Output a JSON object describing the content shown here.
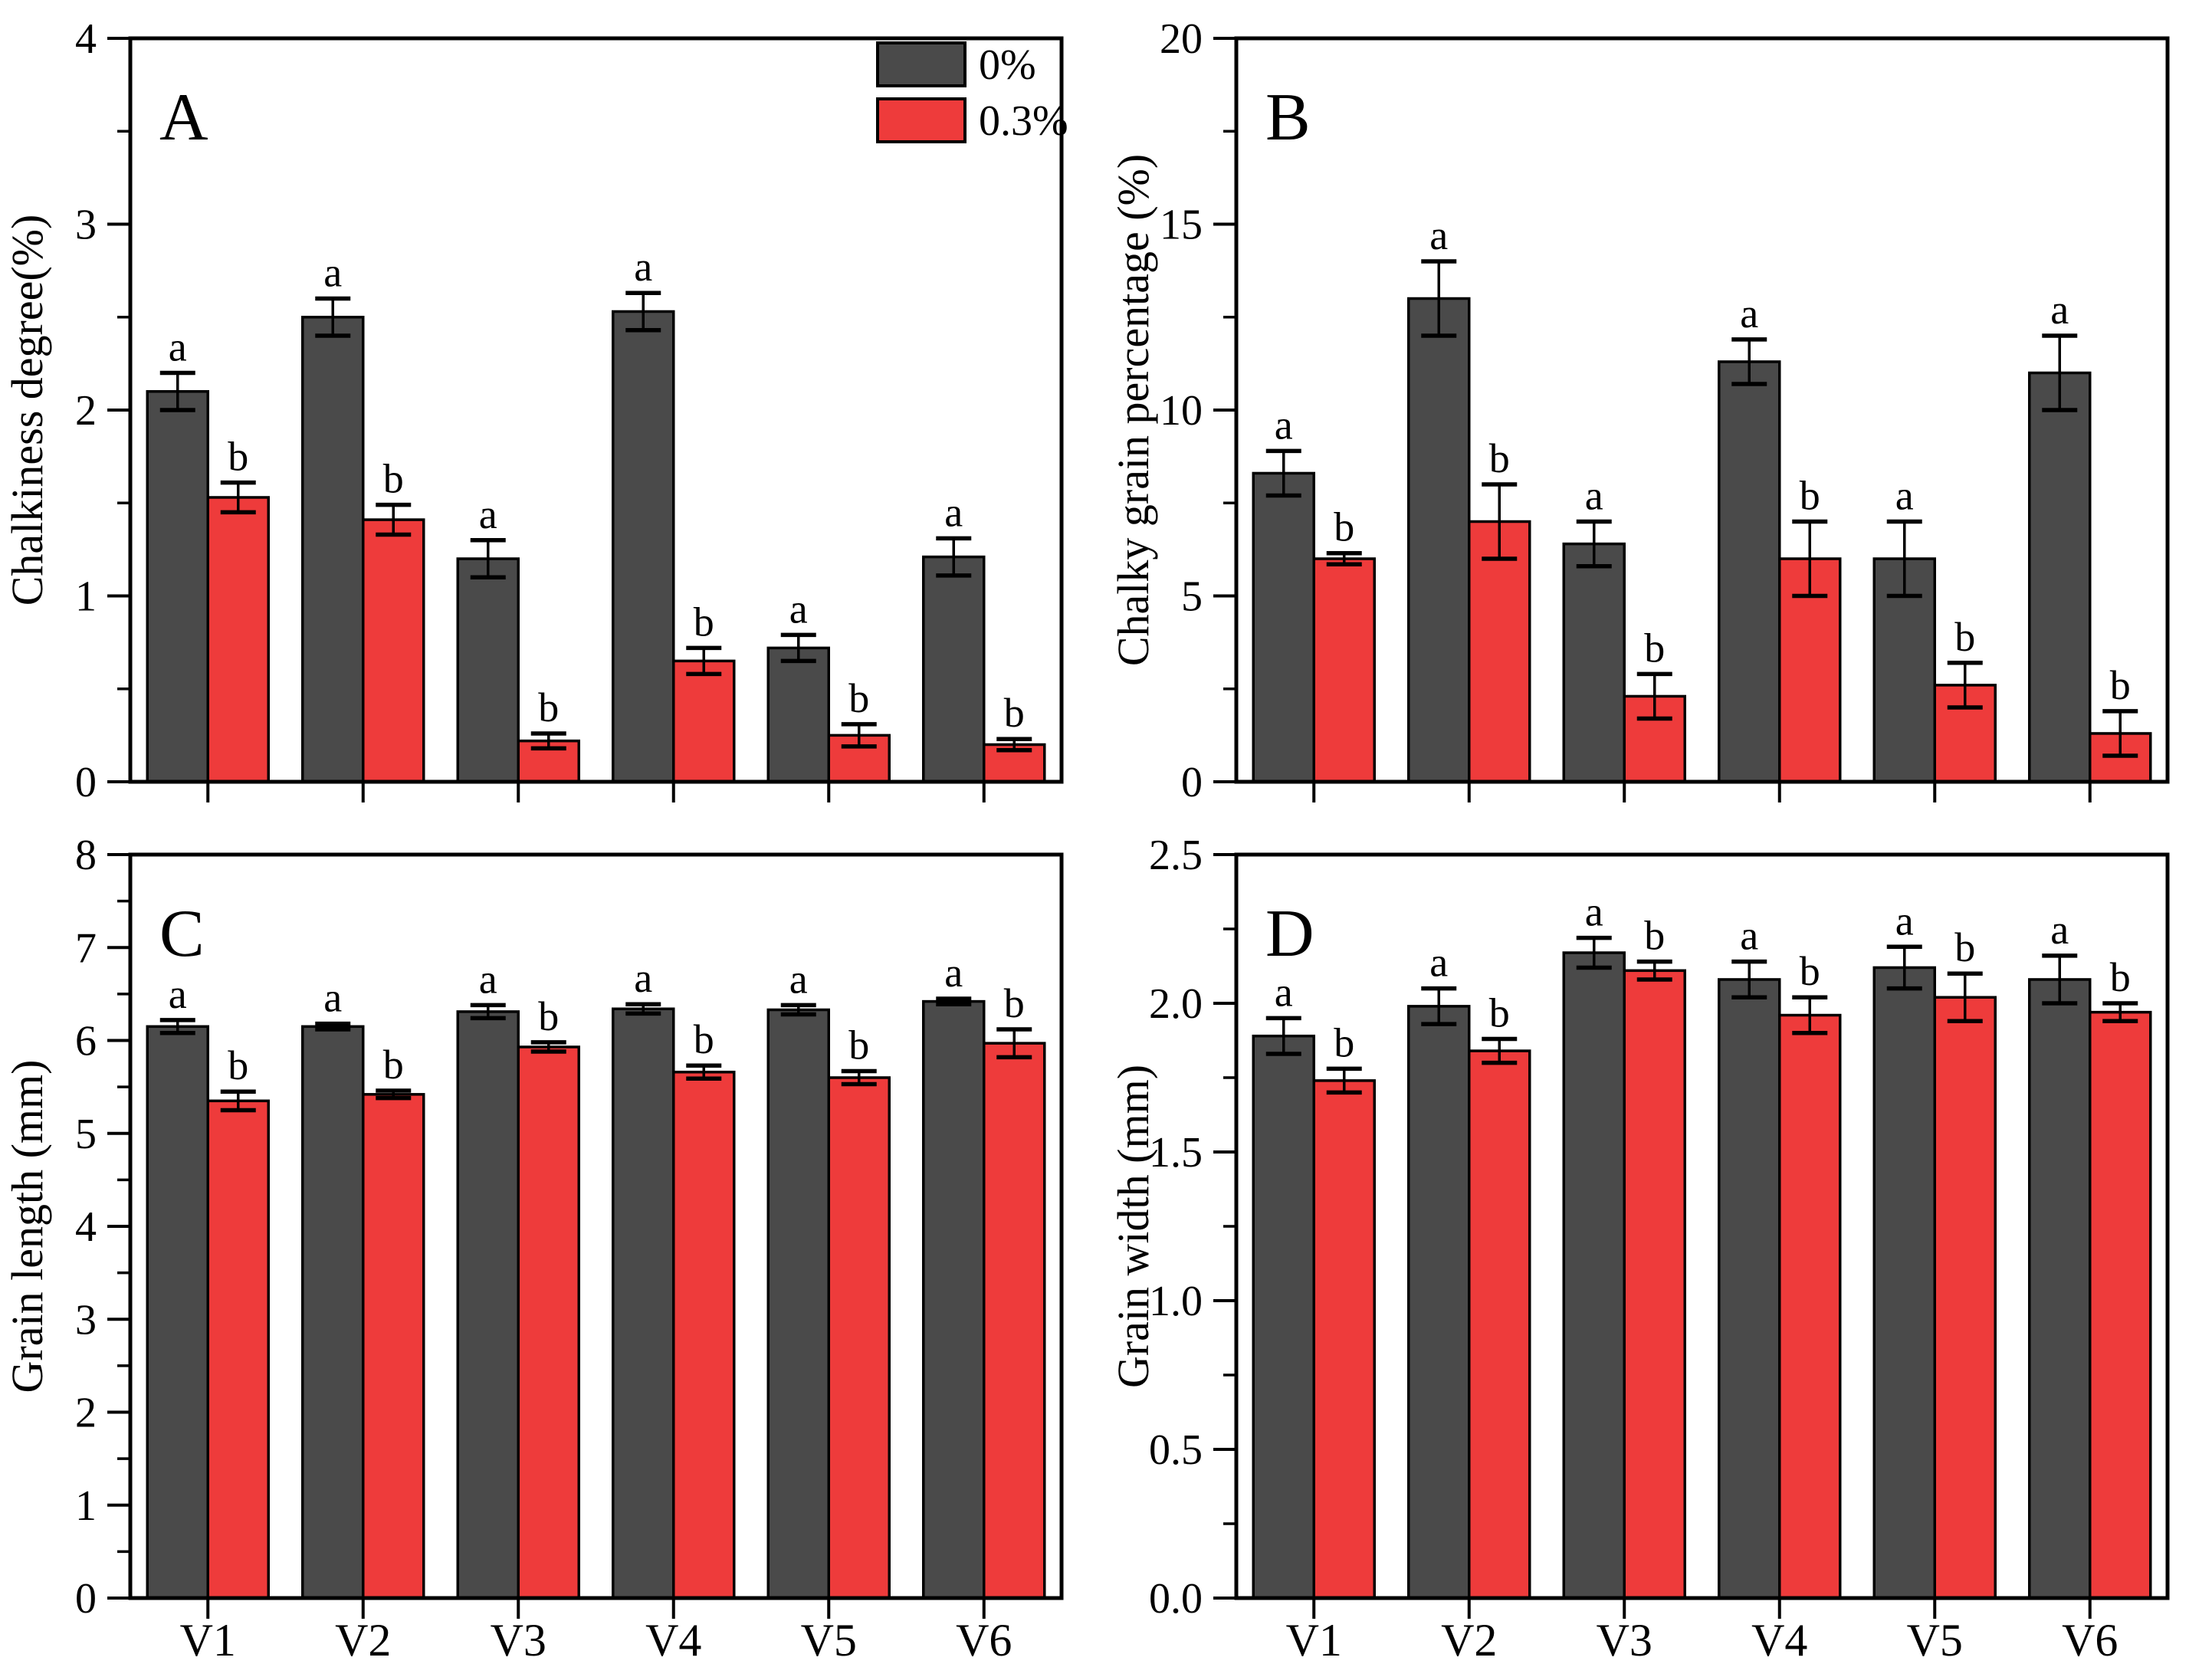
{
  "figure": {
    "background": "#ffffff"
  },
  "colors": {
    "dark_bar": "#4a4a4a",
    "red_bar": "#ee3b3b",
    "axis": "#000000",
    "error_bar": "#000000",
    "text": "#000000"
  },
  "legend": {
    "position": "top-right-inside-panel-A",
    "items": [
      {
        "label": "0%",
        "color": "#4a4a4a"
      },
      {
        "label": "0.3%",
        "color": "#ee3b3b"
      }
    ]
  },
  "categories": [
    "V1",
    "V2",
    "V3",
    "V4",
    "V5",
    "V6"
  ],
  "chart_data": [
    {
      "panel_label": "A",
      "type": "bar",
      "title": "",
      "xlabel": "",
      "ylabel": "Chalkiness degree(%)",
      "ylim": [
        0,
        4
      ],
      "ytick_major": 1,
      "ytick_minor": 0.5,
      "ytick_decimals": 0,
      "grid": false,
      "show_x_labels": false,
      "categories": [
        "V1",
        "V2",
        "V3",
        "V4",
        "V5",
        "V6"
      ],
      "series": [
        {
          "name": "0%",
          "color": "#4a4a4a",
          "values": [
            2.1,
            2.5,
            1.2,
            2.53,
            0.72,
            1.21
          ],
          "errors": [
            0.1,
            0.1,
            0.1,
            0.1,
            0.07,
            0.1
          ],
          "sig_letters": [
            "a",
            "a",
            "a",
            "a",
            "a",
            "a"
          ]
        },
        {
          "name": "0.3%",
          "color": "#ee3b3b",
          "values": [
            1.53,
            1.41,
            0.22,
            0.65,
            0.25,
            0.2
          ],
          "errors": [
            0.08,
            0.08,
            0.04,
            0.07,
            0.06,
            0.03
          ],
          "sig_letters": [
            "b",
            "b",
            "b",
            "b",
            "b",
            "b"
          ]
        }
      ]
    },
    {
      "panel_label": "B",
      "type": "bar",
      "title": "",
      "xlabel": "",
      "ylabel": "Chalky grain percentage (%)",
      "ylim": [
        0,
        20
      ],
      "ytick_major": 5,
      "ytick_minor": 2.5,
      "ytick_decimals": 0,
      "grid": false,
      "show_x_labels": false,
      "categories": [
        "V1",
        "V2",
        "V3",
        "V4",
        "V5",
        "V6"
      ],
      "series": [
        {
          "name": "0%",
          "color": "#4a4a4a",
          "values": [
            8.3,
            13.0,
            6.4,
            11.3,
            6.0,
            11.0
          ],
          "errors": [
            0.6,
            1.0,
            0.6,
            0.6,
            1.0,
            1.0
          ],
          "sig_letters": [
            "a",
            "a",
            "a",
            "a",
            "a",
            "a"
          ]
        },
        {
          "name": "0.3%",
          "color": "#ee3b3b",
          "values": [
            6.0,
            7.0,
            2.3,
            6.0,
            2.6,
            1.3
          ],
          "errors": [
            0.15,
            1.0,
            0.6,
            1.0,
            0.6,
            0.6
          ],
          "sig_letters": [
            "b",
            "b",
            "b",
            "b",
            "b",
            "b"
          ]
        }
      ]
    },
    {
      "panel_label": "C",
      "type": "bar",
      "title": "",
      "xlabel": "",
      "ylabel": "Grain length (mm)",
      "ylim": [
        0,
        8
      ],
      "ytick_major": 1,
      "ytick_minor": 0.5,
      "ytick_decimals": 0,
      "grid": false,
      "show_x_labels": true,
      "categories": [
        "V1",
        "V2",
        "V3",
        "V4",
        "V5",
        "V6"
      ],
      "series": [
        {
          "name": "0%",
          "color": "#4a4a4a",
          "values": [
            6.15,
            6.15,
            6.31,
            6.34,
            6.33,
            6.42
          ],
          "errors": [
            0.07,
            0.03,
            0.07,
            0.05,
            0.05,
            0.03
          ],
          "sig_letters": [
            "a",
            "a",
            "a",
            "a",
            "a",
            "a"
          ]
        },
        {
          "name": "0.3%",
          "color": "#ee3b3b",
          "values": [
            5.35,
            5.42,
            5.93,
            5.66,
            5.6,
            5.97
          ],
          "errors": [
            0.1,
            0.04,
            0.05,
            0.07,
            0.07,
            0.15
          ],
          "sig_letters": [
            "b",
            "b",
            "b",
            "b",
            "b",
            "b"
          ]
        }
      ]
    },
    {
      "panel_label": "D",
      "type": "bar",
      "title": "",
      "xlabel": "",
      "ylabel": "Grain width (mm)",
      "ylim": [
        0,
        2.5
      ],
      "ytick_major": 0.5,
      "ytick_minor": 0.25,
      "ytick_decimals": 1,
      "grid": false,
      "show_x_labels": true,
      "categories": [
        "V1",
        "V2",
        "V3",
        "V4",
        "V5",
        "V6"
      ],
      "series": [
        {
          "name": "0%",
          "color": "#4a4a4a",
          "values": [
            1.89,
            1.99,
            2.17,
            2.08,
            2.12,
            2.08
          ],
          "errors": [
            0.06,
            0.06,
            0.05,
            0.06,
            0.07,
            0.08
          ],
          "sig_letters": [
            "a",
            "a",
            "a",
            "a",
            "a",
            "a"
          ]
        },
        {
          "name": "0.3%",
          "color": "#ee3b3b",
          "values": [
            1.74,
            1.84,
            2.11,
            1.96,
            2.02,
            1.97
          ],
          "errors": [
            0.04,
            0.04,
            0.03,
            0.06,
            0.08,
            0.03
          ],
          "sig_letters": [
            "b",
            "b",
            "b",
            "b",
            "b",
            "b"
          ]
        }
      ]
    }
  ]
}
